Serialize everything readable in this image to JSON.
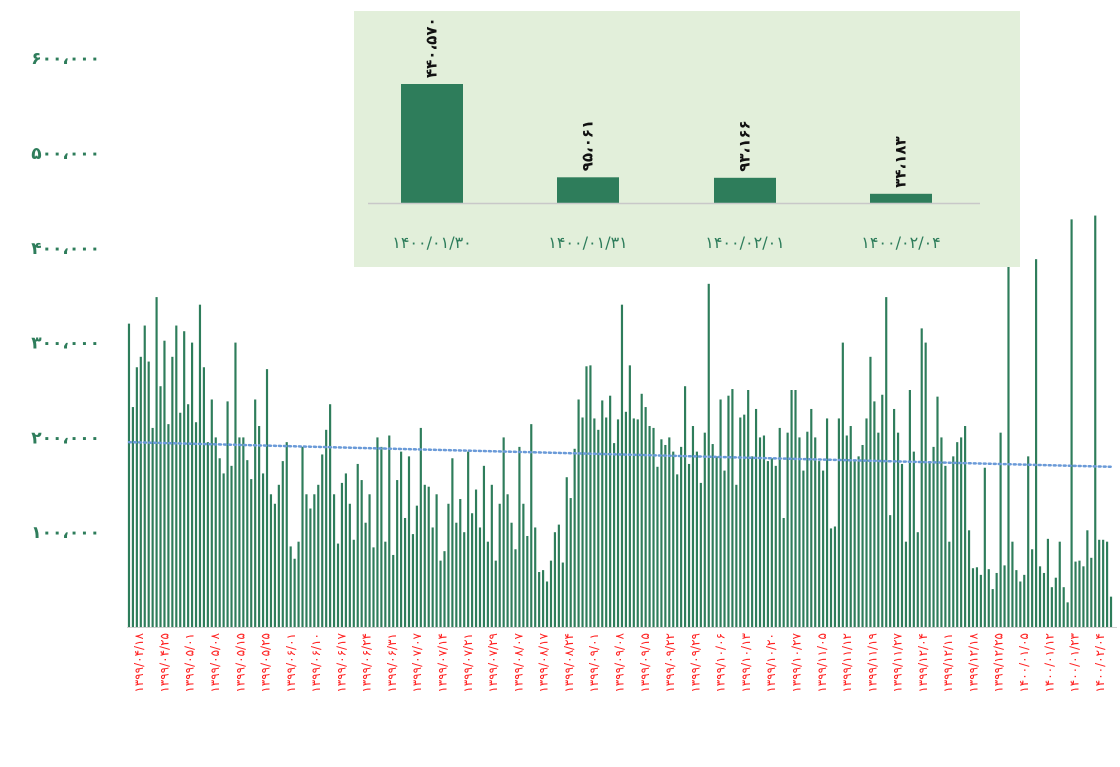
{
  "colors": {
    "bar": "#2e7d5b",
    "trend": "#6a9ad8",
    "inset_bg": "#e2efda",
    "y_tick": "#2e7d5b",
    "x_tick": "#ff2020"
  },
  "chart_data": [
    {
      "type": "bar",
      "title": "",
      "ylim": [
        0,
        650000
      ],
      "y_ticks": [
        100000,
        200000,
        300000,
        400000,
        500000,
        600000
      ],
      "y_tick_labels": [
        "۱۰۰،۰۰۰",
        "۲۰۰،۰۰۰",
        "۳۰۰،۰۰۰",
        "۴۰۰،۰۰۰",
        "۵۰۰،۰۰۰",
        "۶۰۰،۰۰۰"
      ],
      "x_tick_labels": [
        "۱۳۹۹/۰۴/۱۸",
        "۱۳۹۹/۰۴/۲۵",
        "۱۳۹۹/۰۵/۰۱",
        "۱۳۹۹/۰۵/۰۸",
        "۱۳۹۹/۰۵/۱۵",
        "۱۳۹۹/۰۵/۲۵",
        "۱۳۹۹/۰۶/۰۱",
        "۱۳۹۹/۰۶/۱۰",
        "۱۳۹۹/۰۶/۱۷",
        "۱۳۹۹/۰۶/۲۴",
        "۱۳۹۹/۰۶/۳۱",
        "۱۳۹۹/۰۷/۰۷",
        "۱۳۹۹/۰۷/۱۴",
        "۱۳۹۹/۰۷/۲۱",
        "۱۳۹۹/۰۷/۲۹",
        "۱۳۹۹/۰۸/۰۷",
        "۱۳۹۹/۰۸/۱۷",
        "۱۳۹۹/۰۸/۲۴",
        "۱۳۹۹/۰۹/۰۱",
        "۱۳۹۹/۰۹/۰۸",
        "۱۳۹۹/۰۹/۱۵",
        "۱۳۹۹/۰۹/۲۲",
        "۱۳۹۹/۰۹/۲۹",
        "۱۳۹۹/۱۰/۰۶",
        "۱۳۹۹/۱۰/۱۳",
        "۱۳۹۹/۱۰/۲۰",
        "۱۳۹۹/۱۰/۲۷",
        "۱۳۹۹/۱۱/۰۵",
        "۱۳۹۹/۱۱/۱۲",
        "۱۳۹۹/۱۱/۱۹",
        "۱۳۹۹/۱۱/۲۷",
        "۱۳۹۹/۱۲/۰۴",
        "۱۳۹۹/۱۲/۱۱",
        "۱۳۹۹/۱۲/۱۸",
        "۱۳۹۹/۱۲/۲۵",
        "۱۴۰۰/۰۱/۰۵",
        "۱۴۰۰/۰۱/۱۲",
        "۱۴۰۰/۰۱/۲۳",
        "۱۴۰۰/۰۲/۰۴"
      ],
      "values": [
        320000,
        232000,
        274000,
        285000,
        318000,
        280000,
        210000,
        348000,
        254000,
        302000,
        214000,
        285000,
        318000,
        226000,
        312000,
        235000,
        300000,
        216000,
        340000,
        274000,
        195000,
        240000,
        200000,
        178000,
        162000,
        238000,
        170000,
        300000,
        200000,
        200000,
        176000,
        156000,
        240000,
        212000,
        162000,
        272000,
        140000,
        130000,
        150000,
        175000,
        195000,
        85000,
        72000,
        90000,
        190000,
        140000,
        125000,
        140000,
        150000,
        182000,
        208000,
        235000,
        140000,
        88000,
        152000,
        162000,
        130000,
        92000,
        172000,
        155000,
        110000,
        140000,
        84000,
        200000,
        190000,
        90000,
        202000,
        76000,
        155000,
        185000,
        115000,
        180000,
        98000,
        128000,
        210000,
        150000,
        148000,
        105000,
        140000,
        70000,
        80000,
        130000,
        178000,
        110000,
        135000,
        100000,
        185000,
        120000,
        145000,
        105000,
        170000,
        90000,
        150000,
        70000,
        130000,
        200000,
        140000,
        110000,
        82000,
        190000,
        130000,
        96000,
        214000,
        105000,
        58000,
        60000,
        48000,
        70000,
        100000,
        108000,
        68000,
        158000,
        136000,
        188000,
        240000,
        221000,
        275000,
        276000,
        220000,
        208000,
        239000,
        221000,
        244000,
        194000,
        219000,
        340000,
        227000,
        276000,
        220000,
        219000,
        246000,
        232000,
        212000,
        210000,
        169000,
        198000,
        192000,
        200000,
        185000,
        161000,
        190000,
        254000,
        172000,
        212000,
        185000,
        152000,
        205000,
        362000,
        193000,
        180000,
        240000,
        165000,
        244000,
        251000,
        150000,
        221000,
        224000,
        250000,
        180000,
        230000,
        200000,
        202000,
        175000,
        178000,
        170000,
        210000,
        115000,
        205000,
        250000,
        250000,
        200000,
        165000,
        206000,
        230000,
        200000,
        175000,
        165000,
        220000,
        104000,
        106000,
        220000,
        300000,
        202000,
        212000,
        175000,
        180000,
        192000,
        220000,
        285000,
        238000,
        205000,
        245000,
        348000,
        118000,
        230000,
        205000,
        172000,
        90000,
        250000,
        185000,
        100000,
        315000,
        300000,
        175000,
        190000,
        243000,
        200000,
        170000,
        90000,
        180000,
        195000,
        200000,
        212000,
        102000,
        62000,
        63000,
        55000,
        168000,
        61000,
        40000,
        57000,
        205000,
        65000,
        420000,
        90000,
        60000,
        48000,
        55000,
        180000,
        82000,
        388000,
        64000,
        57000,
        93000,
        42000,
        52000,
        90000,
        42000,
        26000,
        430000,
        69000,
        70000,
        64000,
        102000,
        73000,
        434000,
        92000,
        92000,
        90000,
        32000
      ],
      "trend_line": [
        195000,
        169000
      ]
    },
    {
      "type": "bar",
      "title": "",
      "categories": [
        "۱۴۰۰/۰۱/۳۰",
        "۱۴۰۰/۰۱/۳۱",
        "۱۴۰۰/۰۲/۰۱",
        "۱۴۰۰/۰۲/۰۴"
      ],
      "values": [
        440570,
        95061,
        93166,
        34183
      ],
      "data_labels": [
        "۴۴۰،۵۷۰",
        "۹۵،۰۶۱",
        "۹۳،۱۶۶",
        "۳۴،۱۸۳"
      ],
      "ylim": [
        0,
        700000
      ]
    }
  ]
}
